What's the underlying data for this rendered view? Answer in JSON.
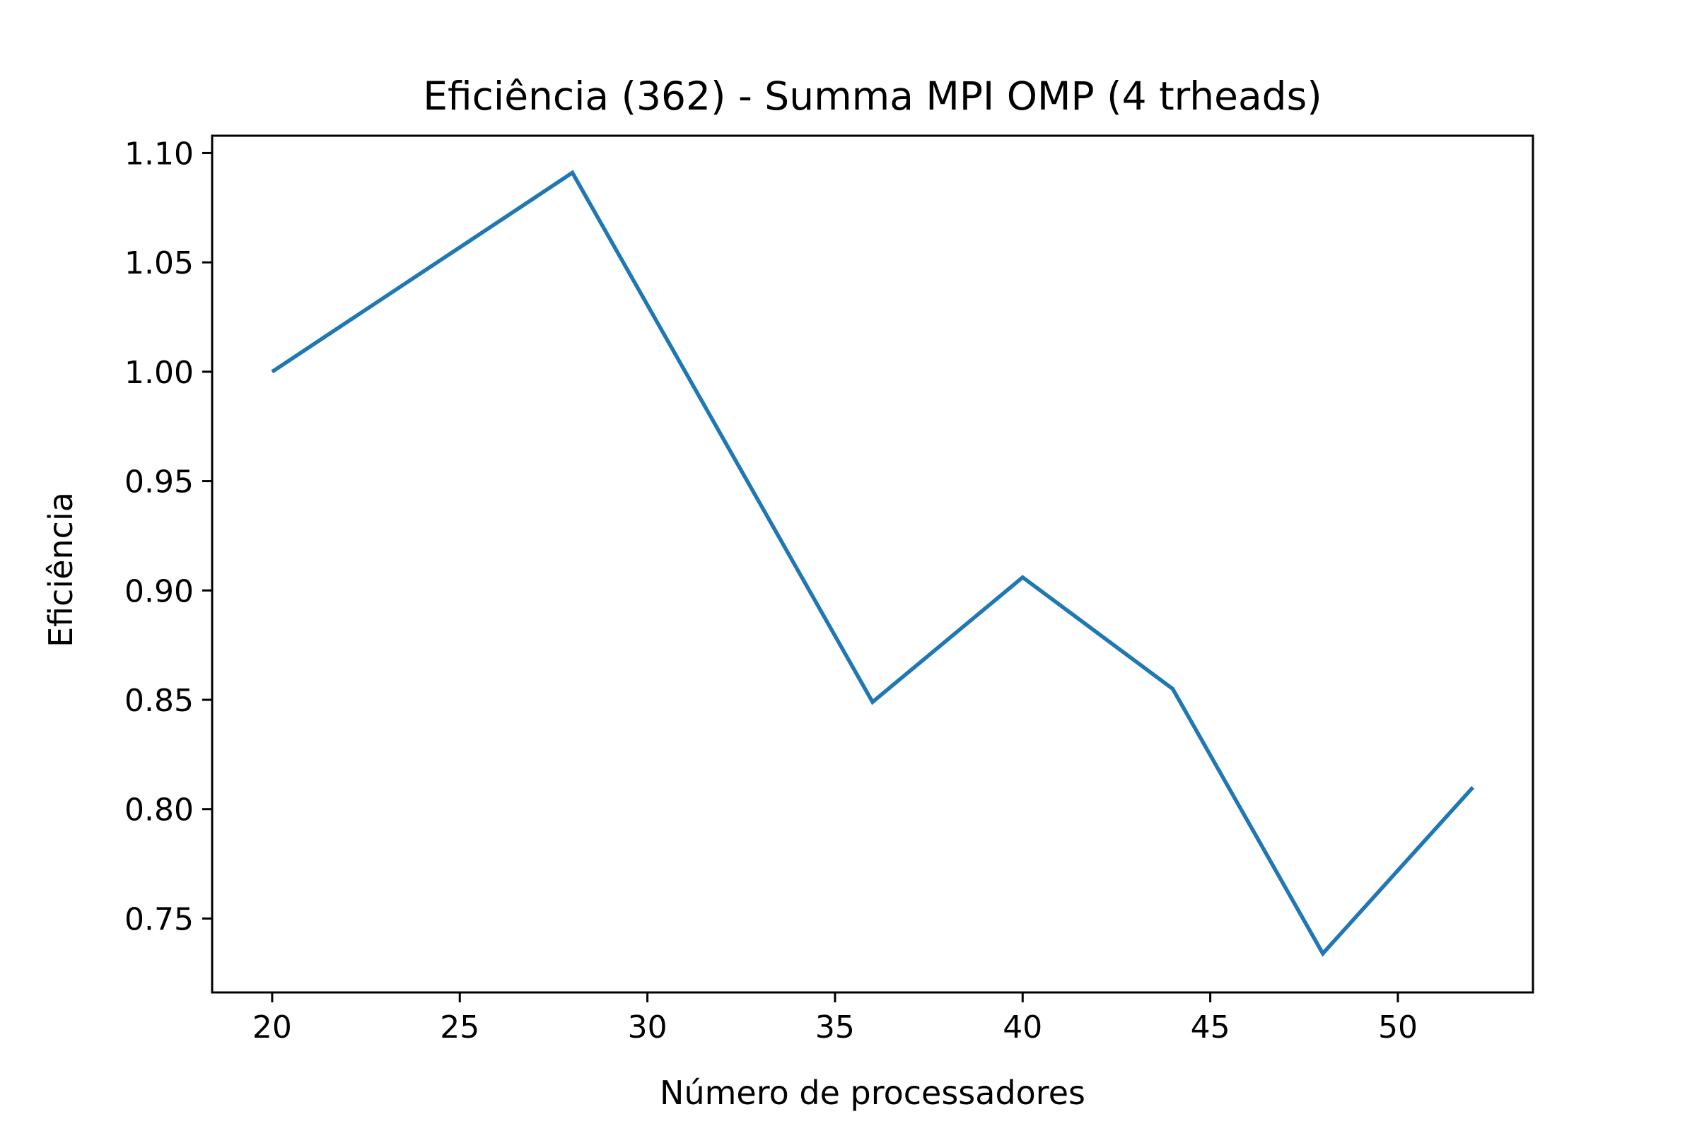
{
  "chart_data": {
    "type": "line",
    "title": "Eficiência (362) - Summa MPI OMP (4 trheads)",
    "xlabel": "Número de processadores",
    "ylabel": "Eficiência",
    "xlim": [
      18.4,
      53.6
    ],
    "ylim": [
      0.7162,
      1.1079
    ],
    "x_ticks": [
      20,
      25,
      30,
      35,
      40,
      45,
      50
    ],
    "y_ticks": [
      0.75,
      0.8,
      0.85,
      0.9,
      0.95,
      1.0,
      1.05,
      1.1
    ],
    "grid": false,
    "series": [
      {
        "color": "#1f77b4",
        "x": [
          20,
          28,
          36,
          40,
          44,
          48,
          52
        ],
        "y": [
          1.0,
          1.091,
          0.849,
          0.906,
          0.855,
          0.734,
          0.81
        ]
      }
    ]
  }
}
